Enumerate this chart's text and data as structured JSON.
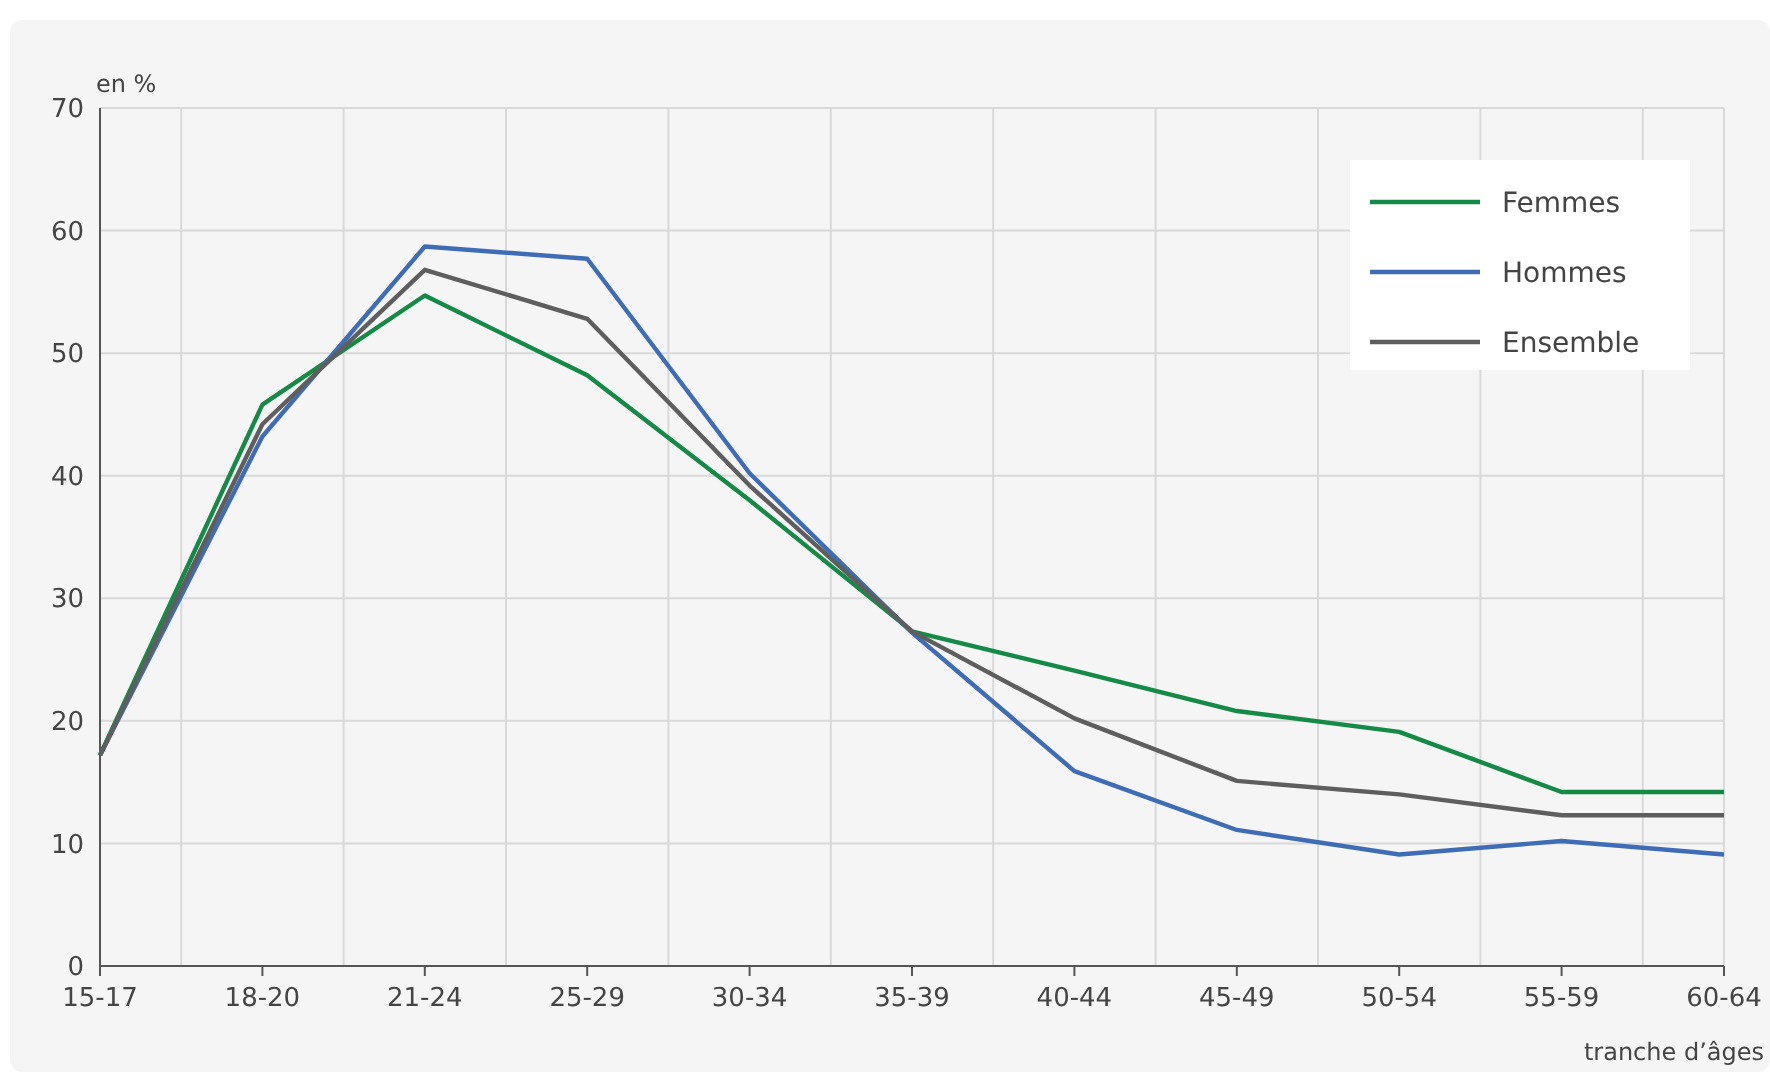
{
  "chart_data": {
    "type": "line",
    "ylabel": "en %",
    "xlabel": "tranche d’âges",
    "categories": [
      "15-17",
      "18-20",
      "21-24",
      "25-29",
      "30-34",
      "35-39",
      "40-44",
      "45-49",
      "50-54",
      "55-59",
      "60-64"
    ],
    "series": [
      {
        "name": "Femmes",
        "color": "#148a46",
        "values": [
          17.2,
          45.8,
          54.7,
          48.2,
          38,
          27.3,
          24.1,
          20.8,
          19.1,
          14.2,
          14.2
        ]
      },
      {
        "name": "Hommes",
        "color": "#3f6db5",
        "values": [
          17.2,
          43.2,
          58.7,
          57.7,
          40.2,
          27.2,
          15.9,
          11.1,
          9.1,
          10.2,
          9.1
        ]
      },
      {
        "name": "Ensemble",
        "color": "#5e5e5e",
        "values": [
          17.2,
          44.2,
          56.8,
          52.8,
          39.2,
          27.3,
          20.2,
          15.1,
          14.0,
          12.3,
          12.3
        ]
      }
    ],
    "ylim": [
      0,
      70
    ],
    "yticks": [
      0,
      10,
      20,
      30,
      40,
      50,
      60,
      70
    ],
    "grid": true,
    "legend": "top right",
    "marker": "none",
    "line_style": "solid"
  }
}
